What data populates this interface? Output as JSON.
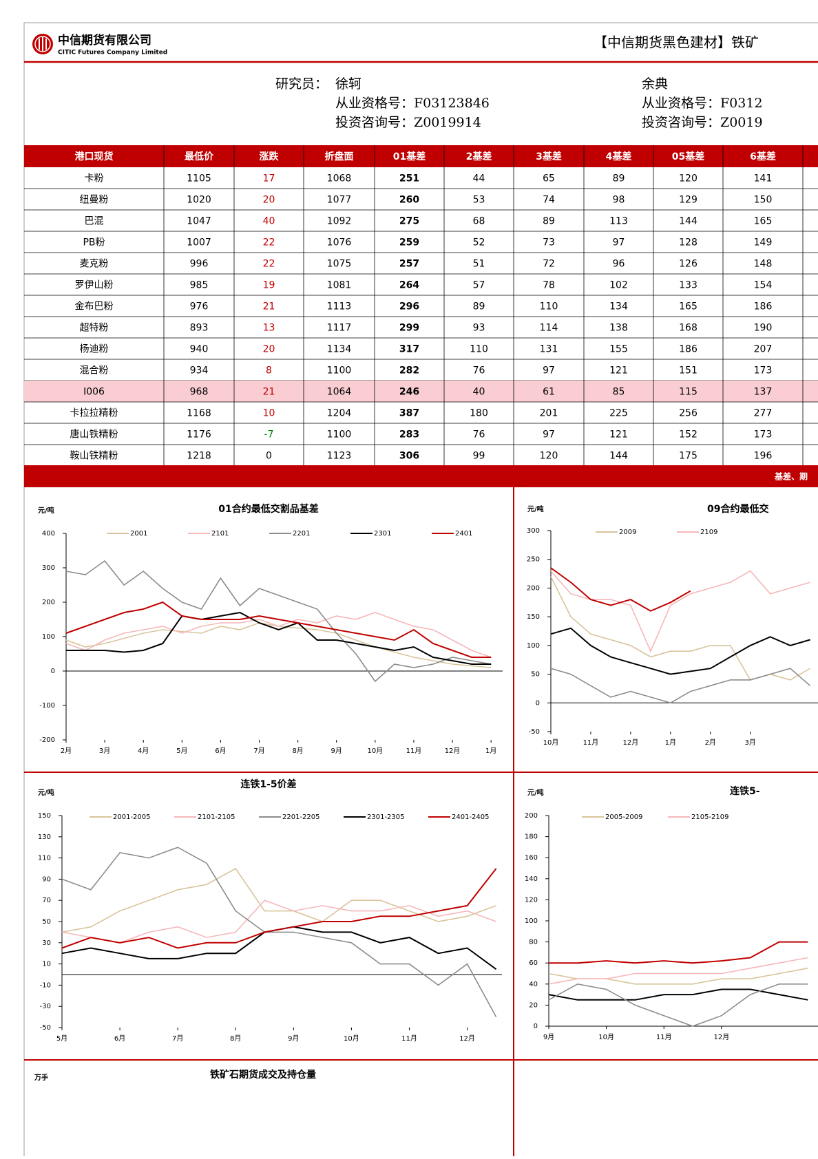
{
  "header": {
    "company_cn": "中信期货有限公司",
    "company_en": "CITIC Futures Company Limited",
    "report_title": "【中信期货黑色建材】铁矿"
  },
  "researchers": {
    "label": "研究员：",
    "people": [
      {
        "name": "徐轲",
        "cert": "从业资格号：F03123846",
        "advisory": "投资咨询号：Z0019914"
      },
      {
        "name": "余典",
        "cert": "从业资格号：F0312",
        "advisory": "投资咨询号：Z0019"
      }
    ]
  },
  "table": {
    "columns": [
      "港口现货",
      "最低价",
      "涨跌",
      "折盘面",
      "01基差",
      "2基差",
      "3基差",
      "4基差",
      "05基差",
      "6基差"
    ],
    "highlight_row": 10,
    "rows": [
      [
        "卡粉",
        1105,
        17,
        1068,
        251,
        44,
        65,
        89,
        120,
        141
      ],
      [
        "纽曼粉",
        1020,
        20,
        1077,
        260,
        53,
        74,
        98,
        129,
        150
      ],
      [
        "巴混",
        1047,
        40,
        1092,
        275,
        68,
        89,
        113,
        144,
        165
      ],
      [
        "PB粉",
        1007,
        22,
        1076,
        259,
        52,
        73,
        97,
        128,
        149
      ],
      [
        "麦克粉",
        996,
        22,
        1075,
        257,
        51,
        72,
        96,
        126,
        148
      ],
      [
        "罗伊山粉",
        985,
        19,
        1081,
        264,
        57,
        78,
        102,
        133,
        154
      ],
      [
        "金布巴粉",
        976,
        21,
        1113,
        296,
        89,
        110,
        134,
        165,
        186
      ],
      [
        "超特粉",
        893,
        13,
        1117,
        299,
        93,
        114,
        138,
        168,
        190
      ],
      [
        "杨迪粉",
        940,
        20,
        1134,
        317,
        110,
        131,
        155,
        186,
        207
      ],
      [
        "混合粉",
        934,
        8,
        1100,
        282,
        76,
        97,
        121,
        151,
        173
      ],
      [
        "I006",
        968,
        21,
        1064,
        246,
        40,
        61,
        85,
        115,
        137
      ],
      [
        "卡拉拉精粉",
        1168,
        10,
        1204,
        387,
        180,
        201,
        225,
        256,
        277
      ],
      [
        "唐山铁精粉",
        1176,
        -7,
        1100,
        283,
        76,
        97,
        121,
        152,
        173
      ],
      [
        "鞍山铁精粉",
        1218,
        0,
        1123,
        306,
        99,
        120,
        144,
        175,
        196
      ]
    ]
  },
  "section_banner": "基差、期",
  "charts": [
    {
      "type": "line",
      "title": "01合约最低交割品基差",
      "unit": "元/吨",
      "x": [
        0,
        0.5,
        1,
        1.5,
        2,
        2.5,
        3,
        3.5,
        4,
        4.5,
        5,
        5.5,
        6,
        6.5,
        7,
        7.5,
        8,
        8.5,
        9,
        9.5,
        10,
        10.5,
        11
      ],
      "xlim": [
        0,
        11.3
      ],
      "xticks": [
        {
          "value": 0,
          "label": "2月"
        },
        {
          "value": 1,
          "label": "3月"
        },
        {
          "value": 2,
          "label": "4月"
        },
        {
          "value": 3,
          "label": "5月"
        },
        {
          "value": 4,
          "label": "6月"
        },
        {
          "value": 5,
          "label": "7月"
        },
        {
          "value": 6,
          "label": "8月"
        },
        {
          "value": 7,
          "label": "9月"
        },
        {
          "value": 8,
          "label": "10月"
        },
        {
          "value": 9,
          "label": "11月"
        },
        {
          "value": 10,
          "label": "12月"
        },
        {
          "value": 11,
          "label": "1月"
        }
      ],
      "ylim": [
        -200,
        400
      ],
      "yticks": [
        -200,
        -100,
        0,
        100,
        200,
        300,
        400
      ],
      "series": [
        {
          "name": "2001",
          "color": "#d8c49a",
          "values": [
            90,
            70,
            80,
            95,
            110,
            120,
            115,
            110,
            130,
            120,
            140,
            130,
            125,
            120,
            110,
            90,
            70,
            55,
            40,
            30,
            20,
            15,
            10
          ]
        },
        {
          "name": "2101",
          "color": "#f6b7b9",
          "values": [
            80,
            60,
            90,
            110,
            120,
            130,
            110,
            130,
            140,
            140,
            150,
            130,
            150,
            140,
            160,
            150,
            170,
            150,
            130,
            120,
            90,
            60,
            40
          ]
        },
        {
          "name": "2201",
          "color": "#8c8c8c",
          "values": [
            290,
            280,
            320,
            250,
            290,
            240,
            200,
            180,
            270,
            190,
            240,
            220,
            200,
            180,
            110,
            50,
            -30,
            20,
            10,
            20,
            40,
            30,
            20
          ]
        },
        {
          "name": "2301",
          "color": "#000000",
          "values": [
            60,
            60,
            60,
            55,
            60,
            80,
            160,
            150,
            160,
            170,
            140,
            120,
            140,
            90,
            90,
            80,
            70,
            60,
            70,
            40,
            30,
            20,
            20
          ]
        },
        {
          "name": "2401",
          "color": "#c00000",
          "values": [
            110,
            130,
            150,
            170,
            180,
            200,
            160,
            150,
            150,
            150,
            160,
            150,
            140,
            130,
            120,
            110,
            100,
            90,
            120,
            80,
            60,
            40,
            40
          ]
        }
      ]
    },
    {
      "type": "line",
      "title": "09合约最低交",
      "unit": "元/吨",
      "x": [
        0,
        0.5,
        1,
        1.5,
        2,
        2.5,
        3,
        3.5,
        4,
        4.5,
        5,
        5.5,
        6,
        6.5
      ],
      "xlim": [
        0,
        6.8
      ],
      "xticks": [
        {
          "value": 0,
          "label": "10月"
        },
        {
          "value": 1,
          "label": "11月"
        },
        {
          "value": 2,
          "label": "12月"
        },
        {
          "value": 3,
          "label": "1月"
        },
        {
          "value": 4,
          "label": "2月"
        },
        {
          "value": 5,
          "label": "3月"
        }
      ],
      "ylim": [
        -50,
        300
      ],
      "yticks": [
        -50,
        0,
        50,
        100,
        150,
        200,
        250,
        300
      ],
      "series": [
        {
          "name": "2009",
          "color": "#d8c49a",
          "values": [
            220,
            150,
            120,
            110,
            100,
            80,
            90,
            90,
            100,
            100,
            40,
            50,
            40,
            60
          ]
        },
        {
          "name": "2109",
          "color": "#f6b7b9",
          "values": [
            230,
            190,
            180,
            180,
            170,
            90,
            170,
            190,
            200,
            210,
            230,
            190,
            200,
            210
          ]
        },
        {
          "color": "#000000",
          "values": [
            120,
            130,
            100,
            80,
            70,
            60,
            50,
            55,
            60,
            80,
            100,
            115,
            100,
            110
          ]
        },
        {
          "color": "#8c8c8c",
          "values": [
            60,
            50,
            30,
            10,
            20,
            10,
            0,
            20,
            30,
            40,
            40,
            50,
            60,
            30
          ]
        },
        {
          "color": "#c00000",
          "values": [
            235,
            210,
            180,
            170,
            180,
            160,
            175,
            195,
            null,
            null,
            null,
            null,
            null,
            null
          ]
        }
      ]
    },
    {
      "type": "line",
      "title": "连铁1-5价差",
      "unit": "元/吨",
      "x": [
        0,
        0.5,
        1,
        1.5,
        2,
        2.5,
        3,
        3.5,
        4,
        4.5,
        5,
        5.5,
        6,
        6.5,
        7,
        7.5
      ],
      "xlim": [
        0,
        7.6
      ],
      "xticks": [
        {
          "value": 0,
          "label": "5月"
        },
        {
          "value": 1,
          "label": "6月"
        },
        {
          "value": 2,
          "label": "7月"
        },
        {
          "value": 3,
          "label": "8月"
        },
        {
          "value": 4,
          "label": "9月"
        },
        {
          "value": 5,
          "label": "10月"
        },
        {
          "value": 6,
          "label": "11月"
        },
        {
          "value": 7,
          "label": "12月"
        }
      ],
      "ylim": [
        -50,
        150
      ],
      "yticks": [
        -50,
        -30,
        -10,
        10,
        30,
        50,
        70,
        90,
        110,
        130,
        150
      ],
      "series": [
        {
          "name": "2001-2005",
          "color": "#d8c49a",
          "values": [
            40,
            45,
            60,
            70,
            80,
            85,
            100,
            60,
            60,
            50,
            70,
            70,
            60,
            50,
            55,
            65
          ]
        },
        {
          "name": "2101-2105",
          "color": "#f6b7b9",
          "values": [
            40,
            35,
            30,
            40,
            45,
            35,
            40,
            70,
            60,
            65,
            60,
            60,
            65,
            55,
            60,
            50
          ]
        },
        {
          "name": "2201-2205",
          "color": "#8c8c8c",
          "values": [
            90,
            80,
            115,
            110,
            120,
            105,
            60,
            40,
            40,
            35,
            30,
            10,
            10,
            -10,
            10,
            -40
          ]
        },
        {
          "name": "2301-2305",
          "color": "#000000",
          "values": [
            20,
            25,
            20,
            15,
            15,
            20,
            20,
            40,
            45,
            40,
            40,
            30,
            35,
            20,
            25,
            5
          ]
        },
        {
          "name": "2401-2405",
          "color": "#c00000",
          "values": [
            25,
            35,
            30,
            35,
            25,
            30,
            30,
            40,
            45,
            50,
            50,
            55,
            55,
            60,
            65,
            100
          ]
        }
      ]
    },
    {
      "type": "line",
      "title": "连铁5-",
      "unit": "元/吨",
      "x": [
        0,
        0.5,
        1,
        1.5,
        2,
        2.5,
        3,
        3.5,
        4,
        4.5
      ],
      "xlim": [
        0,
        4.7
      ],
      "xticks": [
        {
          "value": 0,
          "label": "9月"
        },
        {
          "value": 1,
          "label": "10月"
        },
        {
          "value": 2,
          "label": "11月"
        },
        {
          "value": 3,
          "label": "12月"
        }
      ],
      "ylim": [
        0,
        200
      ],
      "yticks": [
        0,
        20,
        40,
        60,
        80,
        100,
        120,
        140,
        160,
        180,
        200
      ],
      "series": [
        {
          "name": "2005-2009",
          "color": "#d8c49a",
          "values": [
            50,
            45,
            45,
            40,
            40,
            40,
            45,
            45,
            50,
            55
          ]
        },
        {
          "name": "2105-2109",
          "color": "#f6b7b9",
          "values": [
            40,
            45,
            45,
            50,
            50,
            50,
            50,
            55,
            60,
            65
          ]
        },
        {
          "color": "#c00000",
          "values": [
            60,
            60,
            62,
            60,
            62,
            60,
            62,
            65,
            80,
            80
          ]
        },
        {
          "color": "#000000",
          "values": [
            30,
            25,
            25,
            25,
            30,
            30,
            35,
            35,
            30,
            25
          ]
        },
        {
          "color": "#8c8c8c",
          "values": [
            25,
            40,
            35,
            20,
            10,
            0,
            10,
            30,
            40,
            40
          ]
        }
      ]
    }
  ],
  "bottom": {
    "unit": "万手",
    "title": "铁矿石期货成交及持仓量"
  }
}
